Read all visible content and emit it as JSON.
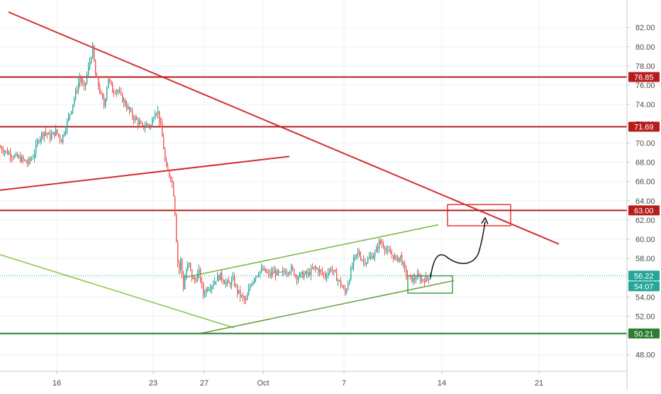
{
  "chart_data": {
    "type": "candlestick",
    "title": "",
    "xlabel": "",
    "ylabel": "",
    "ylim": [
      46.8,
      83.6
    ],
    "y_ticks": [
      "82.00",
      "80.00",
      "78.00",
      "76.00",
      "74.00",
      "72.00",
      "70.00",
      "68.00",
      "66.00",
      "64.00",
      "62.00",
      "60.00",
      "58.00",
      "56.00",
      "54.00",
      "52.00",
      "50.00",
      "48.00"
    ],
    "x_ticks": [
      "16",
      "23",
      "27",
      "Oct",
      "7",
      "14",
      "21"
    ],
    "grid": true,
    "colors": {
      "up": "#26a69a",
      "down": "#ef5350",
      "resistance": "#b71c1c",
      "support": "#2e7d32",
      "channel": "#7cb342",
      "trend": "#d32f2f"
    },
    "horizontal_levels": [
      {
        "value": 76.85,
        "label": "76.85",
        "color": "#b71c1c"
      },
      {
        "value": 71.69,
        "label": "71.69",
        "color": "#b71c1c"
      },
      {
        "value": 63.0,
        "label": "63.00",
        "color": "#b71c1c"
      },
      {
        "value": 50.21,
        "label": "50.21",
        "color": "#2e7d32"
      }
    ],
    "last_price": {
      "value": 56.22,
      "label": "56.22",
      "color": "#26a69a"
    },
    "countdown": {
      "label": "54:07",
      "color": "#26a69a"
    },
    "price_path": [
      [
        0,
        69.5
      ],
      [
        10,
        69.0
      ],
      [
        20,
        68.6
      ],
      [
        30,
        68.3
      ],
      [
        38,
        67.9
      ],
      [
        46,
        68.6
      ],
      [
        54,
        70.5
      ],
      [
        62,
        71.2
      ],
      [
        70,
        70.6
      ],
      [
        78,
        71.2
      ],
      [
        86,
        70.3
      ],
      [
        94,
        72.2
      ],
      [
        100,
        73.6
      ],
      [
        106,
        75.2
      ],
      [
        112,
        76.8
      ],
      [
        118,
        75.6
      ],
      [
        124,
        77.8
      ],
      [
        130,
        79.8
      ],
      [
        134,
        77.0
      ],
      [
        140,
        75.4
      ],
      [
        146,
        73.9
      ],
      [
        152,
        76.8
      ],
      [
        158,
        75.4
      ],
      [
        164,
        75.6
      ],
      [
        170,
        74.8
      ],
      [
        178,
        73.8
      ],
      [
        186,
        72.8
      ],
      [
        194,
        72.2
      ],
      [
        200,
        71.6
      ],
      [
        206,
        71.9
      ],
      [
        212,
        71.8
      ],
      [
        218,
        73.4
      ],
      [
        222,
        73.2
      ],
      [
        226,
        71.7
      ],
      [
        230,
        69.5
      ],
      [
        233,
        67.4
      ],
      [
        237,
        66.8
      ],
      [
        241,
        66.4
      ],
      [
        245,
        64.2
      ],
      [
        248,
        60.0
      ],
      [
        251,
        56.4
      ],
      [
        254,
        57.8
      ],
      [
        258,
        55.0
      ],
      [
        262,
        56.8
      ],
      [
        266,
        57.4
      ],
      [
        270,
        56.0
      ],
      [
        274,
        55.7
      ],
      [
        280,
        56.6
      ],
      [
        286,
        54.3
      ],
      [
        292,
        55.0
      ],
      [
        298,
        55.3
      ],
      [
        304,
        55.9
      ],
      [
        310,
        56.2
      ],
      [
        316,
        55.6
      ],
      [
        322,
        55.3
      ],
      [
        328,
        55.8
      ],
      [
        334,
        54.6
      ],
      [
        340,
        54.0
      ],
      [
        346,
        53.5
      ],
      [
        352,
        55.2
      ],
      [
        358,
        56.1
      ],
      [
        364,
        56.6
      ],
      [
        370,
        56.8
      ],
      [
        378,
        56.3
      ],
      [
        386,
        56.6
      ],
      [
        394,
        56.3
      ],
      [
        402,
        56.7
      ],
      [
        410,
        56.9
      ],
      [
        418,
        56.1
      ],
      [
        426,
        56.3
      ],
      [
        434,
        56.4
      ],
      [
        442,
        57.0
      ],
      [
        450,
        56.7
      ],
      [
        458,
        56.2
      ],
      [
        466,
        57.0
      ],
      [
        474,
        56.0
      ],
      [
        480,
        55.3
      ],
      [
        486,
        54.4
      ],
      [
        492,
        56.1
      ],
      [
        498,
        57.8
      ],
      [
        504,
        58.6
      ],
      [
        510,
        57.9
      ],
      [
        516,
        57.7
      ],
      [
        522,
        58.2
      ],
      [
        528,
        58.5
      ],
      [
        534,
        59.7
      ],
      [
        540,
        59.4
      ],
      [
        546,
        58.6
      ],
      [
        552,
        58.4
      ],
      [
        558,
        57.9
      ],
      [
        564,
        58.2
      ],
      [
        570,
        56.7
      ],
      [
        576,
        56.0
      ],
      [
        582,
        55.8
      ],
      [
        588,
        56.1
      ],
      [
        594,
        55.8
      ],
      [
        600,
        55.9
      ],
      [
        606,
        56.2
      ]
    ],
    "drawings": [
      {
        "kind": "line",
        "from": [
          12,
          83.6
        ],
        "to": [
          788,
          59.5
        ],
        "color": "#d32f2f"
      },
      {
        "kind": "line",
        "from": [
          0,
          65.1
        ],
        "to": [
          408,
          68.6
        ],
        "color": "#d32f2f"
      },
      {
        "kind": "line",
        "from": [
          0,
          58.4
        ],
        "to": [
          330,
          50.8
        ],
        "color": "#8bc34a"
      },
      {
        "kind": "line",
        "from": [
          282,
          50.2
        ],
        "to": [
          640,
          55.7
        ],
        "color": "#689f38"
      },
      {
        "kind": "line",
        "from": [
          258,
          56.0
        ],
        "to": [
          618,
          61.5
        ],
        "color": "#7cb342"
      },
      {
        "kind": "rect",
        "from": [
          631,
          63.6
        ],
        "to": [
          720,
          61.4
        ],
        "color": "#e53935"
      },
      {
        "kind": "rect",
        "from": [
          575,
          56.2
        ],
        "to": [
          638,
          54.4
        ],
        "color": "#43a047"
      }
    ]
  }
}
